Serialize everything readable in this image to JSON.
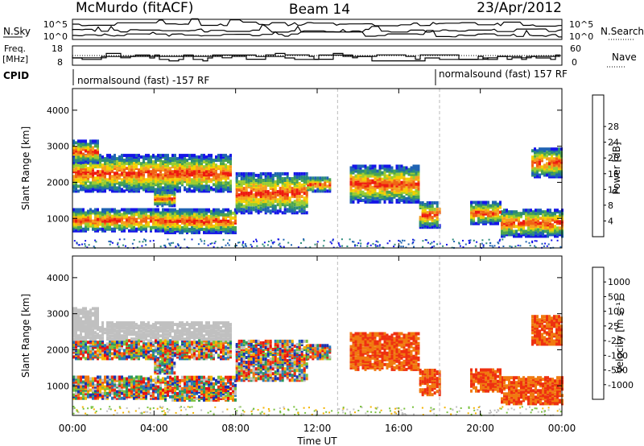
{
  "header": {
    "station": "McMurdo (fitACF)",
    "beam": "Beam 14",
    "date": "23/Apr/2012"
  },
  "params": {
    "left_nsky": "N.Sky",
    "right_nsearch": "N.Search",
    "left_freq": "Freq.",
    "left_freq_unit": "[MHz]",
    "right_nave": "Nave",
    "cpid": "CPID",
    "noise_ticks_left": [
      "10^5",
      "10^0"
    ],
    "noise_ticks_right": [
      "10^5",
      "10^0"
    ],
    "freq_ticks": [
      "18",
      "8"
    ],
    "nave_ticks": [
      "60",
      "0"
    ],
    "cpid_left_text": "normalsound (fast) -157 RF",
    "cpid_right_text": "normalsound (fast) 157 RF"
  },
  "chart_data": [
    {
      "type": "heatmap",
      "name": "power",
      "ylabel": "Slant Range [km]",
      "ylim": [
        180,
        4600
      ],
      "y_ticks": [
        1000,
        2000,
        3000,
        4000
      ],
      "x_ticks_hours": [
        0,
        4,
        8,
        12,
        16,
        20,
        24
      ],
      "colorbar": {
        "label": "Power [dB]",
        "ticks": [
          "4",
          "8",
          "12",
          "16",
          "20",
          "24",
          "28"
        ],
        "colors": [
          "#1515e8",
          "#1f63b3",
          "#2a8a7a",
          "#4aa450",
          "#9acd32",
          "#f4d000",
          "#f5a020",
          "#f06414",
          "#ee1a10"
        ]
      }
    },
    {
      "type": "heatmap",
      "name": "velocity",
      "ylabel": "Slant Range [km]",
      "ylim": [
        180,
        4600
      ],
      "y_ticks": [
        1000,
        2000,
        3000,
        4000
      ],
      "x_ticks_hours": [
        0,
        4,
        8,
        12,
        16,
        20,
        24
      ],
      "xlabel": "Time UT",
      "x_tick_labels": [
        "00:00",
        "04:00",
        "08:00",
        "12:00",
        "16:00",
        "20:00",
        "00:00"
      ],
      "colorbar": {
        "label": "Velocity [m s⁻¹]",
        "ticks": [
          "1000",
          "500",
          "100",
          "25",
          "-25",
          "-100",
          "-500",
          "-1000"
        ],
        "colors": [
          "#1832b4",
          "#2c78b8",
          "#2e9a5a",
          "#7ac23e",
          "#c0c0c0",
          "#f4b400",
          "#f07a10",
          "#ee3010",
          "#e81010"
        ]
      }
    }
  ]
}
